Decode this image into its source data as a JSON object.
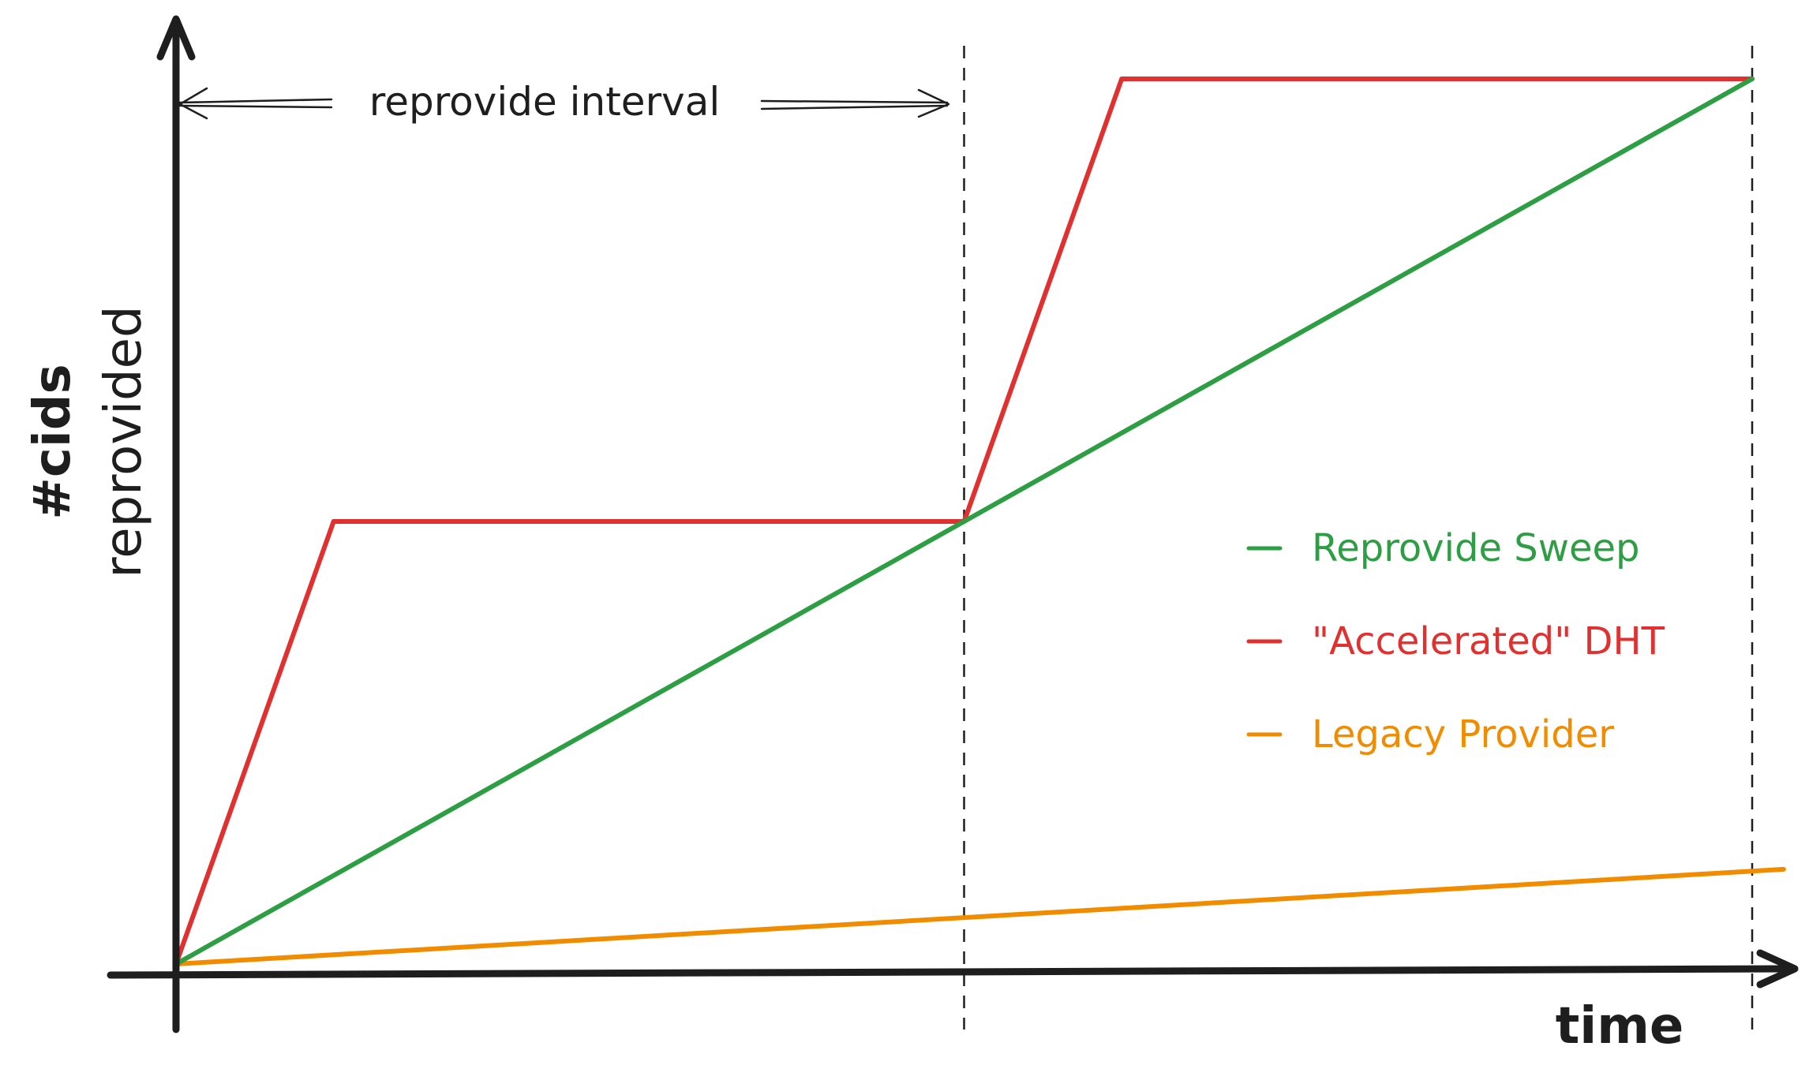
{
  "chart_data": {
    "type": "line",
    "title": "",
    "xlabel": "time",
    "ylabel": "#cids reprovided",
    "x_range": [
      0,
      2
    ],
    "y_range": [
      0,
      1
    ],
    "grid": false,
    "legend_position": "middle-right",
    "annotations": {
      "interval_label": "reprovide interval",
      "interval_span": [
        0,
        1
      ],
      "dashed_markers": [
        1,
        2
      ]
    },
    "series": [
      {
        "name": "Reprovide Sweep",
        "color": "#2e9e44",
        "points": [
          [
            0,
            0
          ],
          [
            1,
            0.5
          ],
          [
            2,
            1
          ]
        ]
      },
      {
        "name": "\"Accelerated\" DHT",
        "color": "#e03131",
        "points": [
          [
            0,
            0
          ],
          [
            0.2,
            0.5
          ],
          [
            1,
            0.5
          ],
          [
            1.2,
            1
          ],
          [
            2,
            1
          ]
        ]
      },
      {
        "name": "Legacy Provider",
        "color": "#f08c00",
        "points": [
          [
            0,
            0
          ],
          [
            2.04,
            0.107
          ]
        ]
      }
    ]
  }
}
